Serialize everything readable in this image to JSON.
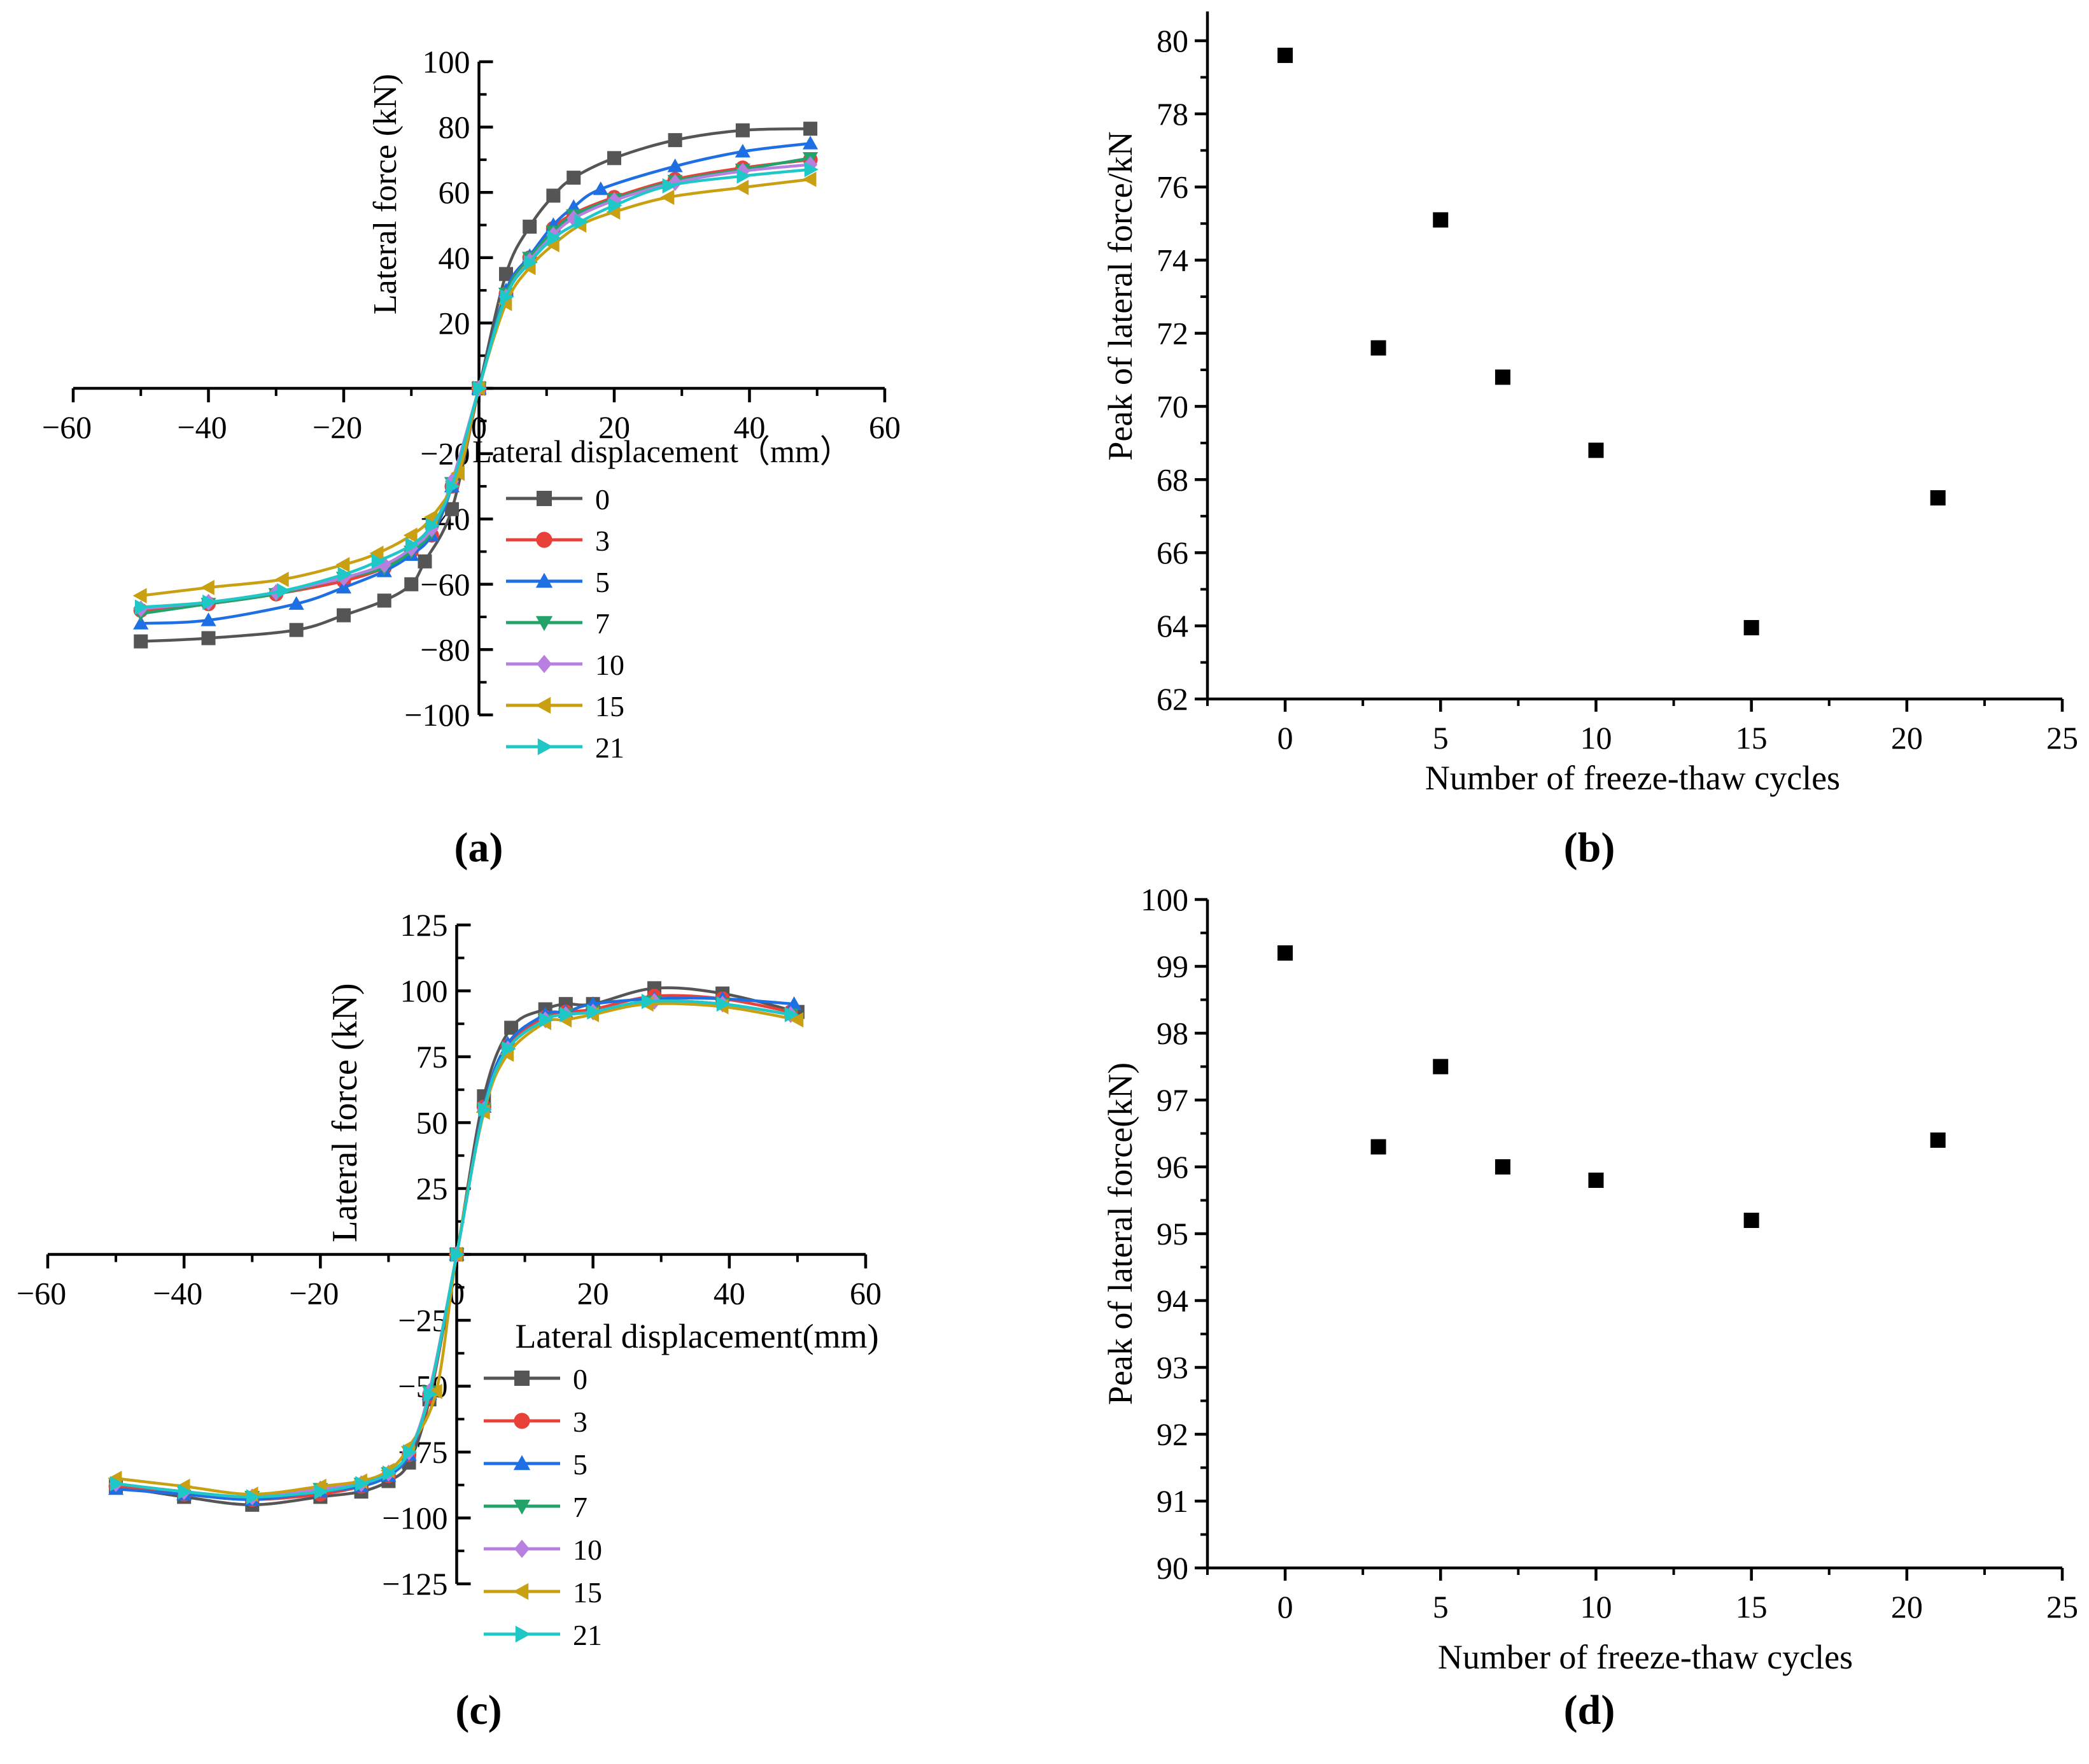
{
  "chart_data": [
    {
      "panel": "a",
      "panel_label": "(a)",
      "type": "line",
      "title": "",
      "xlabel": "Lateral displacement（mm）",
      "ylabel": "Lateral force (kN)",
      "xlim": [
        -60,
        60
      ],
      "ylim": [
        -100,
        100
      ],
      "xticks": [
        -60,
        -40,
        -20,
        0,
        20,
        40,
        60
      ],
      "yticks": [
        -100,
        -80,
        -60,
        -40,
        -20,
        0,
        20,
        40,
        60,
        80,
        100
      ],
      "x_tick_labels": [
        "−60",
        "−40",
        "−20",
        "0",
        "20",
        "40",
        "60"
      ],
      "y_tick_labels": [
        "−100",
        "−80",
        "−60",
        "−40",
        "−20",
        "0",
        "20",
        "40",
        "60",
        "80",
        "100"
      ],
      "legend_position": "lower-center",
      "series": [
        {
          "name": "0",
          "color": "#555555",
          "marker": "square",
          "x": [
            -50,
            -40,
            -27,
            -20,
            -14,
            -10,
            -8,
            -4,
            0,
            4,
            7.5,
            11,
            14,
            20,
            29,
            39,
            49
          ],
          "y": [
            -77.5,
            -76.5,
            -74,
            -69.5,
            -65,
            -60,
            -53,
            -37,
            0,
            35,
            49.5,
            59,
            64.5,
            70.5,
            76,
            79,
            79.5
          ]
        },
        {
          "name": "3",
          "color": "#e8413a",
          "marker": "circle",
          "x": [
            -50,
            -40,
            -30,
            -20,
            -14,
            -10,
            -7,
            -4,
            0,
            4,
            7.5,
            11,
            14,
            20,
            29,
            39,
            49
          ],
          "y": [
            -68,
            -66,
            -63,
            -59,
            -55,
            -50,
            -45,
            -30,
            0,
            29,
            40,
            49,
            53.5,
            58.5,
            64,
            67.5,
            70
          ]
        },
        {
          "name": "5",
          "color": "#1e6fe3",
          "marker": "triangle-up",
          "x": [
            -50,
            -40,
            -27,
            -20,
            -14,
            -10,
            -7,
            -4,
            0,
            4,
            7.5,
            11,
            14,
            18,
            29,
            39,
            49
          ],
          "y": [
            -72,
            -71,
            -66,
            -61,
            -56,
            -51,
            -45,
            -30,
            0,
            30,
            40.5,
            50,
            55.5,
            61,
            68,
            72.5,
            75
          ]
        },
        {
          "name": "7",
          "color": "#23a36a",
          "marker": "triangle-down",
          "x": [
            -50,
            -40,
            -30,
            -20,
            -14,
            -10,
            -7,
            -4,
            0,
            4,
            7.5,
            11,
            14,
            20,
            29,
            39,
            49
          ],
          "y": [
            -69,
            -66,
            -63,
            -58,
            -55,
            -50,
            -44,
            -29,
            0,
            29,
            40,
            48,
            53,
            58,
            63.5,
            67,
            70.5
          ]
        },
        {
          "name": "10",
          "color": "#b77fe0",
          "marker": "diamond",
          "x": [
            -50,
            -40,
            -30,
            -20,
            -14,
            -10,
            -7,
            -4,
            0,
            4,
            7.5,
            11,
            14,
            20,
            29,
            39,
            49
          ],
          "y": [
            -67.5,
            -65.5,
            -62.5,
            -58,
            -54,
            -49,
            -43,
            -28.5,
            0,
            28,
            39,
            47,
            52,
            57.5,
            63,
            66.5,
            68.5
          ]
        },
        {
          "name": "15",
          "color": "#c9a012",
          "marker": "triangle-left",
          "x": [
            -50,
            -40,
            -29,
            -20,
            -15,
            -10,
            -7,
            -3,
            0,
            4,
            7.5,
            11,
            15,
            20,
            28,
            39,
            49
          ],
          "y": [
            -63.5,
            -61,
            -58.5,
            -54,
            -50.5,
            -45,
            -39.5,
            -26,
            0,
            26,
            37,
            44,
            50,
            54,
            58.5,
            61.5,
            64
          ]
        },
        {
          "name": "21",
          "color": "#1fc7c7",
          "marker": "triangle-right",
          "x": [
            -50,
            -40,
            -29,
            -20,
            -15,
            -10,
            -7,
            -4,
            0,
            4,
            7.5,
            11,
            15,
            20,
            28,
            39,
            49
          ],
          "y": [
            -67,
            -65.5,
            -62,
            -57,
            -53,
            -48,
            -42,
            -30,
            0,
            28,
            38.5,
            46,
            51,
            56,
            62,
            65,
            67
          ]
        }
      ]
    },
    {
      "panel": "b",
      "panel_label": "(b)",
      "type": "scatter",
      "title": "",
      "xlabel": "Number of freeze-thaw cycles",
      "ylabel": "Peak of lateral force/kN",
      "xlim": [
        -2.5,
        25
      ],
      "ylim": [
        62,
        80.8
      ],
      "xticks": [
        0,
        5,
        10,
        15,
        20,
        25
      ],
      "yticks": [
        62,
        64,
        66,
        68,
        70,
        72,
        74,
        76,
        78,
        80
      ],
      "x_tick_labels": [
        "0",
        "5",
        "10",
        "15",
        "20",
        "25"
      ],
      "y_tick_labels": [
        "62",
        "64",
        "66",
        "68",
        "70",
        "72",
        "74",
        "76",
        "78",
        "80"
      ],
      "x": [
        0,
        3,
        5,
        7,
        10,
        15,
        21
      ],
      "y": [
        79.6,
        71.6,
        75.1,
        70.8,
        68.8,
        63.95,
        67.5
      ],
      "color": "#000000",
      "marker": "square"
    },
    {
      "panel": "c",
      "panel_label": "(c)",
      "type": "line",
      "title": "",
      "xlabel": "Lateral displacement(mm)",
      "ylabel": "Lateral force (kN)",
      "xlim": [
        -60,
        60
      ],
      "ylim": [
        -125,
        125
      ],
      "xticks": [
        -60,
        -40,
        -20,
        0,
        20,
        40,
        60
      ],
      "yticks": [
        -125,
        -100,
        -75,
        -50,
        -25,
        0,
        25,
        50,
        75,
        100,
        125
      ],
      "x_tick_labels": [
        "−60",
        "−40",
        "−20",
        "0",
        "20",
        "40",
        "60"
      ],
      "y_tick_labels": [
        "−125",
        "−100",
        "−75",
        "−50",
        "−25",
        "0",
        "25",
        "50",
        "75",
        "100",
        "125"
      ],
      "legend_position": "lower-center",
      "series": [
        {
          "name": "0",
          "color": "#555555",
          "marker": "square",
          "x": [
            -50,
            -40,
            -30,
            -20,
            -14,
            -10,
            -7,
            -4,
            0,
            4,
            8,
            13,
            16,
            20,
            29,
            39,
            50
          ],
          "y": [
            -88,
            -92,
            -95,
            -92,
            -90,
            -86,
            -79,
            -55,
            0,
            60,
            86,
            93,
            95,
            95,
            101,
            99,
            92
          ]
        },
        {
          "name": "3",
          "color": "#e8413a",
          "marker": "circle",
          "x": [
            -50,
            -40,
            -30,
            -20,
            -14,
            -10,
            -7,
            -4,
            0,
            4,
            7.5,
            13,
            16,
            20,
            29,
            39,
            49
          ],
          "y": [
            -88,
            -91,
            -93,
            -91,
            -88,
            -84,
            -76,
            -54,
            0,
            56,
            79,
            90,
            92,
            93,
            98,
            97,
            92
          ]
        },
        {
          "name": "5",
          "color": "#1e6fe3",
          "marker": "triangle-up",
          "x": [
            -50,
            -40,
            -30,
            -20,
            -14,
            -10,
            -7,
            -4,
            0,
            4,
            7.5,
            13,
            16,
            20,
            29,
            39,
            49.5
          ],
          "y": [
            -89,
            -91,
            -93,
            -90,
            -88,
            -84,
            -76,
            -53,
            0,
            56,
            80,
            91,
            92,
            95,
            97,
            97,
            95
          ]
        },
        {
          "name": "7",
          "color": "#23a36a",
          "marker": "triangle-down",
          "x": [
            -50,
            -40,
            -30,
            -20,
            -14,
            -10,
            -7,
            -4,
            0,
            4,
            7.5,
            13,
            16,
            20,
            29,
            39,
            49
          ],
          "y": [
            -87,
            -90,
            -92,
            -89,
            -87,
            -83,
            -75,
            -52,
            0,
            55,
            78,
            89,
            91,
            92,
            96,
            95,
            91
          ]
        },
        {
          "name": "10",
          "color": "#b77fe0",
          "marker": "diamond",
          "x": [
            -50,
            -40,
            -30,
            -20,
            -14,
            -10,
            -7,
            -4,
            0,
            4,
            7.5,
            13,
            16,
            20,
            29,
            39,
            49
          ],
          "y": [
            -87,
            -90,
            -92,
            -89,
            -87,
            -83,
            -75,
            -52,
            0,
            55,
            78,
            89,
            91,
            92,
            96,
            95,
            91
          ]
        },
        {
          "name": "15",
          "color": "#c9a012",
          "marker": "triangle-left",
          "x": [
            -50,
            -40,
            -30,
            -20,
            -14,
            -10,
            -7,
            -3,
            0,
            4,
            7.5,
            13,
            16,
            20,
            28,
            39,
            50
          ],
          "y": [
            -85,
            -88,
            -91,
            -88,
            -86,
            -82,
            -73,
            -52,
            0,
            54,
            76,
            88,
            89,
            91,
            95,
            94,
            89
          ]
        },
        {
          "name": "21",
          "color": "#1fc7c7",
          "marker": "triangle-right",
          "x": [
            -50,
            -40,
            -30,
            -20,
            -14,
            -10,
            -7,
            -4,
            0,
            4,
            7.5,
            13,
            16,
            20,
            28,
            39,
            49
          ],
          "y": [
            -87,
            -90,
            -92,
            -90,
            -87,
            -83,
            -75,
            -53,
            0,
            55,
            78,
            89,
            91,
            92,
            96,
            95,
            91
          ]
        }
      ]
    },
    {
      "panel": "d",
      "panel_label": "(d)",
      "type": "scatter",
      "title": "",
      "xlabel": "Number of freeze-thaw cycles",
      "ylabel": "Peak of lateral force(kN)",
      "xlim": [
        -2.5,
        25
      ],
      "ylim": [
        90,
        100
      ],
      "xticks": [
        0,
        5,
        10,
        15,
        20,
        25
      ],
      "yticks": [
        90,
        91,
        92,
        93,
        94,
        95,
        96,
        97,
        98,
        99,
        100
      ],
      "x_tick_labels": [
        "0",
        "5",
        "10",
        "15",
        "20",
        "25"
      ],
      "y_tick_labels": [
        "90",
        "91",
        "92",
        "93",
        "94",
        "95",
        "96",
        "97",
        "98",
        "99",
        "100"
      ],
      "x": [
        0,
        3,
        5,
        7,
        10,
        15,
        21
      ],
      "y": [
        99.2,
        96.3,
        97.5,
        96.0,
        95.8,
        95.2,
        96.4
      ],
      "color": "#000000",
      "marker": "square"
    }
  ]
}
